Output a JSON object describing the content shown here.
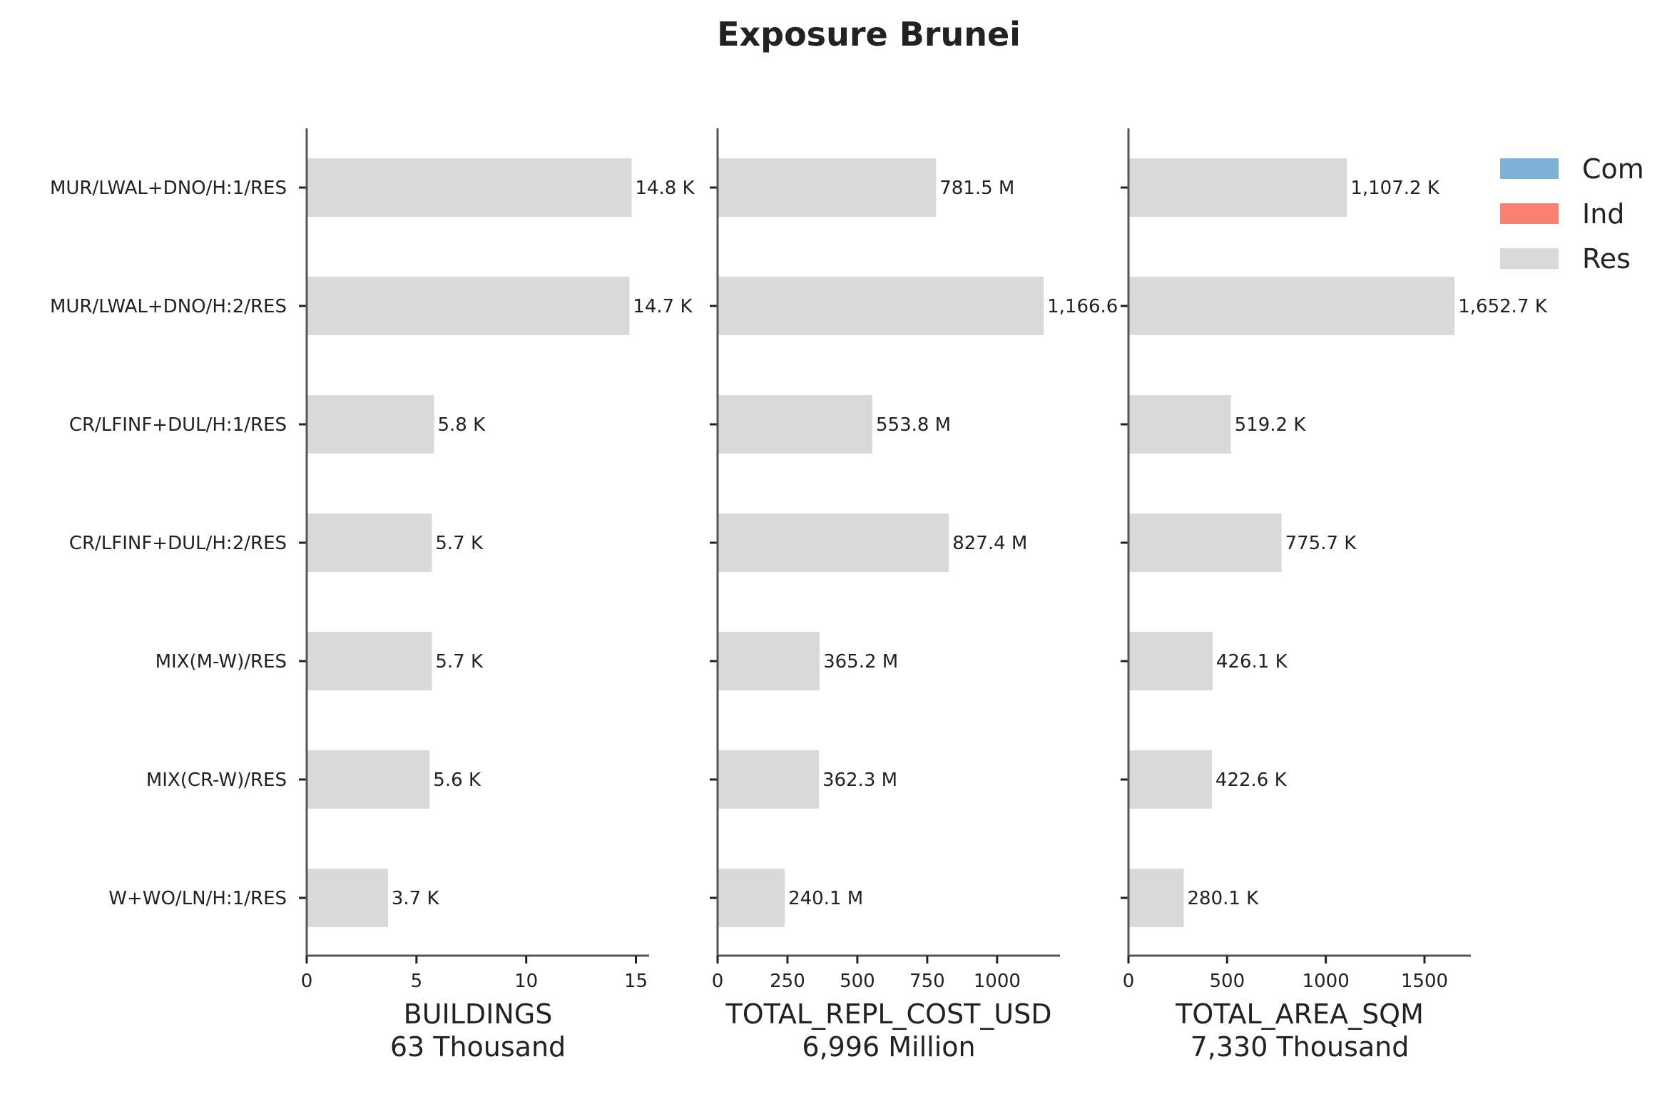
{
  "chart_data": {
    "type": "bar",
    "orientation": "horizontal",
    "title": "Exposure Brunei",
    "categories": [
      "MUR/LWAL+DNO/H:1/RES",
      "MUR/LWAL+DNO/H:2/RES",
      "CR/LFINF+DUL/H:1/RES",
      "CR/LFINF+DUL/H:2/RES",
      "MIX(M-W)/RES",
      "MIX(CR-W)/RES",
      "W+WO/LN/H:1/RES"
    ],
    "legend": [
      {
        "name": "Com",
        "color": "#7fb0d5"
      },
      {
        "name": "Ind",
        "color": "#fb8072"
      },
      {
        "name": "Res",
        "color": "#d9d9d9"
      }
    ],
    "panels": [
      {
        "xlabel": "BUILDINGS",
        "total_label": "63 Thousand",
        "xlim": [
          0,
          15.6
        ],
        "ticks": [
          0,
          5,
          10,
          15
        ],
        "tick_labels": [
          "0",
          "5",
          "10",
          "15"
        ],
        "series": [
          {
            "name": "Res",
            "values": [
              14.8,
              14.7,
              5.8,
              5.7,
              5.7,
              5.6,
              3.7
            ]
          }
        ],
        "value_labels": [
          "14.8 K",
          "14.7 K",
          "5.8 K",
          "5.7 K",
          "5.7 K",
          "5.6 K",
          "3.7 K"
        ]
      },
      {
        "xlabel": "TOTAL_REPL_COST_USD",
        "total_label": "6,996 Million",
        "xlim": [
          0,
          1225
        ],
        "ticks": [
          0,
          250,
          500,
          750,
          1000
        ],
        "tick_labels": [
          "0",
          "250",
          "500",
          "750",
          "1000"
        ],
        "series": [
          {
            "name": "Res",
            "values": [
              781.5,
              1166.6,
              553.8,
              827.4,
              365.2,
              362.3,
              240.1
            ]
          }
        ],
        "value_labels": [
          "781.5 M",
          "1,166.6",
          "553.8 M",
          "827.4 M",
          "365.2 M",
          "362.3 M",
          "240.1 M"
        ]
      },
      {
        "xlabel": "TOTAL_AREA_SQM",
        "total_label": "7,330 Thousand",
        "xlim": [
          0,
          1735
        ],
        "ticks": [
          0,
          500,
          1000,
          1500
        ],
        "tick_labels": [
          "0",
          "500",
          "1000",
          "1500"
        ],
        "series": [
          {
            "name": "Res",
            "values": [
              1107.2,
              1652.7,
              519.2,
              775.7,
              426.1,
              422.6,
              280.1
            ]
          }
        ],
        "value_labels": [
          "1,107.2 K",
          "1,652.7 K",
          "519.2 K",
          "775.7 K",
          "426.1 K",
          "422.6 K",
          "280.1 K"
        ]
      }
    ]
  }
}
